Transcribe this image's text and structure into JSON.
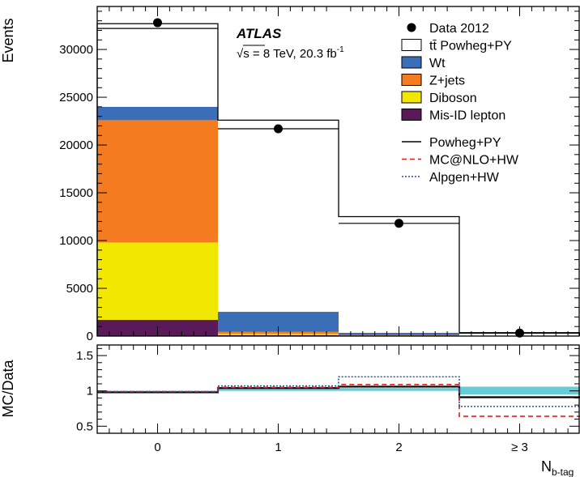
{
  "chart_data": {
    "type": "bar",
    "stacked": true,
    "categories": [
      "0",
      "1",
      "2",
      "≥ 3"
    ],
    "experiment_label": "ATLAS",
    "energy_label": "√s = 8 TeV, 20.3 fb",
    "energy_label_sup": "-1",
    "xlabel": "N",
    "xlabel_sub": "b-tag",
    "main": {
      "ylabel": "Events",
      "ylim": [
        0,
        34500
      ],
      "yticks": [
        0,
        5000,
        10000,
        15000,
        20000,
        25000,
        30000
      ],
      "yticks_labels": [
        "0",
        "5000",
        "10000",
        "15000",
        "20000",
        "25000",
        "30000"
      ],
      "series": [
        {
          "name": "Mis-ID lepton",
          "color": "#5a1a5a",
          "values": [
            1700,
            100,
            20,
            5
          ]
        },
        {
          "name": "Diboson",
          "color": "#f2e700",
          "values": [
            8100,
            120,
            20,
            5
          ]
        },
        {
          "name": "Z+jets",
          "color": "#f57b20",
          "values": [
            12800,
            220,
            60,
            10
          ]
        },
        {
          "name": "Wt",
          "color": "#3a6fb7",
          "values": [
            1400,
            2100,
            250,
            40
          ]
        },
        {
          "name": "tt̄ Powheg+PY",
          "color": "#ffffff",
          "values": [
            8300,
            20100,
            12050,
            250
          ]
        }
      ],
      "data": {
        "name": "Data 2012",
        "values": [
          32800,
          21700,
          11800,
          320
        ]
      },
      "mc_bands": {
        "upper": [
          32700,
          22600,
          12500,
          360
        ],
        "lower": [
          32200,
          21700,
          11800,
          300
        ]
      }
    },
    "ratio": {
      "ylabel": "MC/Data",
      "ylim": [
        0.4,
        1.65
      ],
      "yticks": [
        0.5,
        1,
        1.5
      ],
      "yticks_labels": [
        "0.5",
        "1",
        "1.5"
      ],
      "band": {
        "color": "#66ccd6",
        "lower": [
          0.97,
          1.0,
          1.0,
          0.95
        ],
        "upper": [
          1.0,
          1.04,
          1.04,
          1.06
        ]
      },
      "lines": [
        {
          "name": "Powheg+PY",
          "style": "solid",
          "color": "#000000",
          "values": [
            0.98,
            1.04,
            1.06,
            0.91
          ]
        },
        {
          "name": "MC@NLO+HW",
          "style": "dashed",
          "color": "#e0201b",
          "values": [
            0.99,
            1.05,
            1.09,
            0.64
          ]
        },
        {
          "name": "Alpgen+HW",
          "style": "dotted",
          "color": "#2a4fa8",
          "values": [
            0.99,
            1.07,
            1.2,
            0.78
          ]
        }
      ]
    },
    "legend": {
      "placement": "top-right",
      "entries": [
        {
          "label": "Data 2012",
          "kind": "marker"
        },
        {
          "label": "tt̄ Powheg+PY",
          "kind": "box",
          "color": "#ffffff"
        },
        {
          "label": "Wt",
          "kind": "box",
          "color": "#3a6fb7"
        },
        {
          "label": "Z+jets",
          "kind": "box",
          "color": "#f57b20"
        },
        {
          "label": "Diboson",
          "kind": "box",
          "color": "#f2e700"
        },
        {
          "label": "Mis-ID lepton",
          "kind": "box",
          "color": "#5a1a5a"
        },
        {
          "label": "Powheg+PY",
          "kind": "line",
          "style": "solid",
          "color": "#000000"
        },
        {
          "label": "MC@NLO+HW",
          "kind": "line",
          "style": "dashed",
          "color": "#e0201b"
        },
        {
          "label": "Alpgen+HW",
          "kind": "line",
          "style": "dotted",
          "color": "#2a4fa8"
        }
      ]
    }
  }
}
